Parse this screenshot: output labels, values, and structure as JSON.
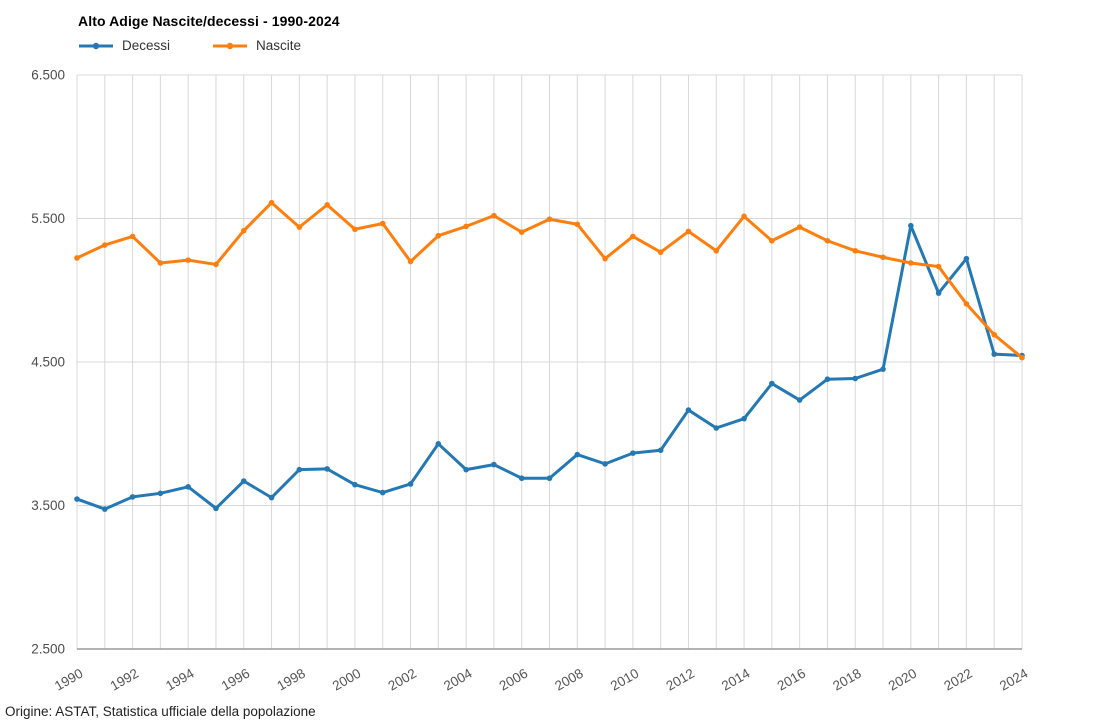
{
  "chart_data": {
    "type": "line",
    "title": "Alto Adige Nascite/decessi - 1990-2024",
    "footer": "Origine: ASTAT, Statistica ufficiale della popolazione",
    "x": [
      1990,
      1991,
      1992,
      1993,
      1994,
      1995,
      1996,
      1997,
      1998,
      1999,
      2000,
      2001,
      2002,
      2003,
      2004,
      2005,
      2006,
      2007,
      2008,
      2009,
      2010,
      2011,
      2012,
      2013,
      2014,
      2015,
      2016,
      2017,
      2018,
      2019,
      2020,
      2021,
      2022,
      2023,
      2024
    ],
    "series": [
      {
        "name": "Decessi",
        "color": "#2478b4",
        "values": [
          3545,
          3475,
          3560,
          3585,
          3630,
          3480,
          3670,
          3555,
          3750,
          3755,
          3645,
          3590,
          3650,
          3930,
          3750,
          3785,
          3690,
          3690,
          3855,
          3790,
          3865,
          3885,
          4165,
          4040,
          4105,
          4350,
          4235,
          4380,
          4385,
          4450,
          5450,
          4980,
          5220,
          4555,
          4545
        ]
      },
      {
        "name": "Nascite",
        "color": "#ff7f0e",
        "values": [
          5225,
          5315,
          5375,
          5190,
          5210,
          5180,
          5415,
          5610,
          5440,
          5595,
          5425,
          5465,
          5200,
          5380,
          5445,
          5520,
          5405,
          5495,
          5460,
          5220,
          5375,
          5265,
          5410,
          5275,
          5515,
          5345,
          5440,
          5345,
          5275,
          5230,
          5190,
          5165,
          4905,
          4690,
          4530
        ]
      }
    ],
    "ylim": [
      2500,
      6500
    ],
    "yticks": [
      2500,
      3500,
      4500,
      5500,
      6500
    ],
    "ytick_labels": [
      "2.500",
      "3.500",
      "4.500",
      "5.500",
      "6.500"
    ],
    "xtick_step": 2,
    "grid": true,
    "legend_position": "top-left",
    "colors": {
      "gridline": "#d8d8d8",
      "axis_line": "#9a9a9a",
      "tick_label": "#4d4d4d"
    }
  }
}
